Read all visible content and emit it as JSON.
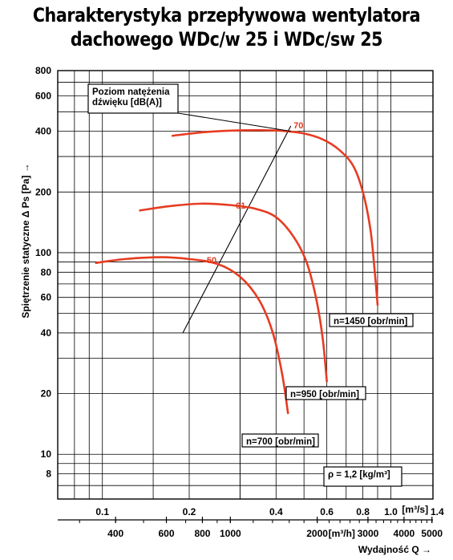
{
  "title_line1": "Charakterystyka przepływowa wentylatora",
  "title_line2": "dachowego WDc/w 25 i WDc/sw 25",
  "chart_data": {
    "type": "line",
    "title": "Charakterystyka przepływowa wentylatora dachowego WDc/w 25 i WDc/sw 25",
    "xlabel": "Wydajność Q →",
    "ylabel": "Spiętrzenie statyczne Δ Ps [Pa] →",
    "x_scale": "log",
    "y_scale": "log",
    "xlim": [
      0.07,
      1.4
    ],
    "ylim": [
      6,
      800
    ],
    "x_unit_top": "[m³/s]",
    "x_unit_bottom": "[m³/h]",
    "x_ticks_top": [
      {
        "v": 0.1,
        "label": "0.1"
      },
      {
        "v": 0.2,
        "label": "0.2"
      },
      {
        "v": 0.4,
        "label": "0.4"
      },
      {
        "v": 0.6,
        "label": "0.6"
      },
      {
        "v": 0.8,
        "label": "0.8"
      },
      {
        "v": 1.0,
        "label": "1.0"
      },
      {
        "v": 1.4,
        "label": "1.4"
      }
    ],
    "x_ticks_bottom": [
      {
        "v": 400,
        "label": "400"
      },
      {
        "v": 600,
        "label": "600"
      },
      {
        "v": 800,
        "label": "800"
      },
      {
        "v": 1000,
        "label": "1000"
      },
      {
        "v": 2000,
        "label": "2000"
      },
      {
        "v": 3000,
        "label": "3000"
      },
      {
        "v": 4000,
        "label": "4000"
      },
      {
        "v": 5000,
        "label": "5000"
      }
    ],
    "y_ticks": [
      {
        "v": 8,
        "label": "8"
      },
      {
        "v": 10,
        "label": "10"
      },
      {
        "v": 20,
        "label": "20"
      },
      {
        "v": 40,
        "label": "40"
      },
      {
        "v": 60,
        "label": "60"
      },
      {
        "v": 80,
        "label": "80"
      },
      {
        "v": 100,
        "label": "100"
      },
      {
        "v": 200,
        "label": "200"
      },
      {
        "v": 400,
        "label": "400"
      },
      {
        "v": 600,
        "label": "600"
      },
      {
        "v": 800,
        "label": "800"
      }
    ],
    "grid": true,
    "series": [
      {
        "name": "n=1450 [obr/min]",
        "color": "#e63c22",
        "sound_level": "70",
        "x": [
          0.175,
          0.22,
          0.28,
          0.35,
          0.42,
          0.5,
          0.58,
          0.66,
          0.74,
          0.8,
          0.85,
          0.88,
          0.9
        ],
        "y": [
          380,
          395,
          403,
          405,
          402,
          390,
          365,
          325,
          270,
          200,
          130,
          80,
          55
        ]
      },
      {
        "name": "n=950 [obr/min]",
        "color": "#e63c22",
        "sound_level": "61",
        "x": [
          0.135,
          0.17,
          0.22,
          0.28,
          0.34,
          0.4,
          0.46,
          0.51,
          0.55,
          0.58,
          0.6
        ],
        "y": [
          162,
          170,
          175,
          172,
          165,
          150,
          120,
          90,
          60,
          38,
          23
        ]
      },
      {
        "name": "n=700 [obr/min]",
        "color": "#e63c22",
        "sound_level": "50",
        "x": [
          0.095,
          0.12,
          0.16,
          0.2,
          0.25,
          0.3,
          0.35,
          0.39,
          0.42,
          0.44
        ],
        "y": [
          89,
          93,
          95,
          93,
          88,
          76,
          58,
          40,
          25,
          16
        ]
      }
    ],
    "sound_line": {
      "x": [
        0.19,
        0.45
      ],
      "y": [
        40,
        425
      ]
    },
    "sound_line_label_lines": [
      "Poziom natężenia",
      "dźwięku [dB(A)]"
    ],
    "annotation": "ρ = 1,2 [kg/m³]"
  }
}
